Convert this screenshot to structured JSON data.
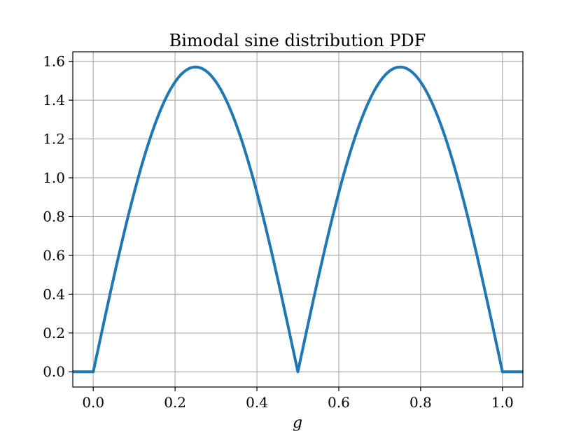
{
  "chart_data": {
    "type": "line",
    "title": "Bimodal sine distribution PDF",
    "xlabel": "g",
    "ylabel": "",
    "xlim": [
      -0.05,
      1.05
    ],
    "ylim": [
      -0.0785,
      1.6493
    ],
    "grid": true,
    "x_ticks": [
      0.0,
      0.2,
      0.4,
      0.6,
      0.8,
      1.0
    ],
    "x_tick_labels": [
      "0.0",
      "0.2",
      "0.4",
      "0.6",
      "0.8",
      "1.0"
    ],
    "y_ticks": [
      0.0,
      0.2,
      0.4,
      0.6,
      0.8,
      1.0,
      1.2,
      1.4,
      1.6
    ],
    "y_tick_labels": [
      "0.0",
      "0.2",
      "0.4",
      "0.6",
      "0.8",
      "1.0",
      "1.2",
      "1.4",
      "1.6"
    ],
    "series": [
      {
        "color": "#1f77b4",
        "x": [
          -0.05,
          0.0,
          0.025,
          0.05,
          0.075,
          0.1,
          0.125,
          0.15,
          0.175,
          0.2,
          0.225,
          0.25,
          0.275,
          0.3,
          0.325,
          0.35,
          0.375,
          0.4,
          0.425,
          0.45,
          0.475,
          0.5,
          0.525,
          0.55,
          0.575,
          0.6,
          0.625,
          0.65,
          0.675,
          0.7,
          0.725,
          0.75,
          0.775,
          0.8,
          0.825,
          0.85,
          0.875,
          0.9,
          0.925,
          0.95,
          0.975,
          1.0,
          1.05
        ],
        "y": [
          0.0,
          0.0,
          0.2457,
          0.4854,
          0.7132,
          0.9233,
          1.1107,
          1.2708,
          1.3996,
          1.4939,
          1.5514,
          1.5708,
          1.5514,
          1.4939,
          1.3996,
          1.2708,
          1.1107,
          0.9233,
          0.7132,
          0.4854,
          0.2457,
          0.0,
          0.2457,
          0.4854,
          0.7132,
          0.9233,
          1.1107,
          1.2708,
          1.3996,
          1.4939,
          1.5514,
          1.5708,
          1.5514,
          1.4939,
          1.3996,
          1.2708,
          1.1107,
          0.9233,
          0.7132,
          0.4854,
          0.2457,
          0.0,
          0.0
        ]
      }
    ],
    "colors": {
      "line": "#1f77b4",
      "grid": "#b0b0b0",
      "axes": "#000000",
      "background": "#ffffff"
    }
  }
}
